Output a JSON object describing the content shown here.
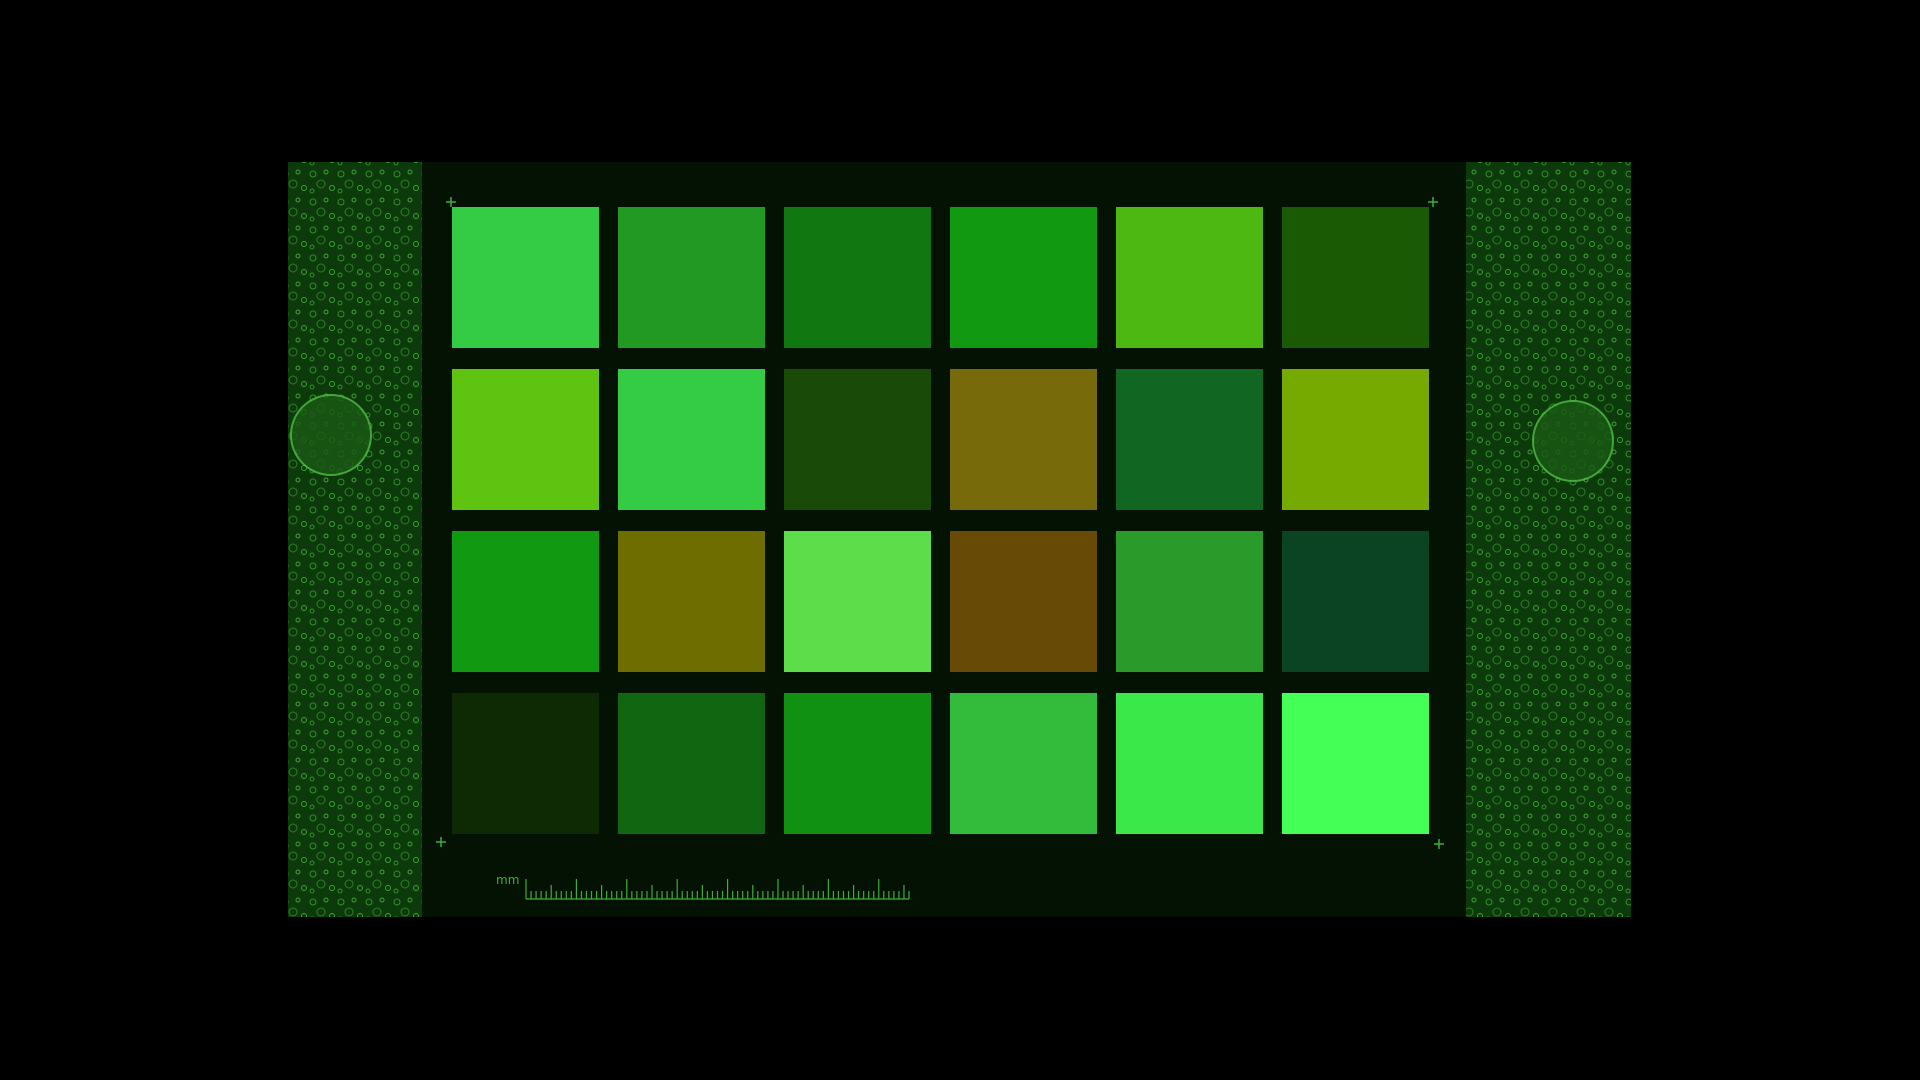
{
  "scale_label": "mm"
}
